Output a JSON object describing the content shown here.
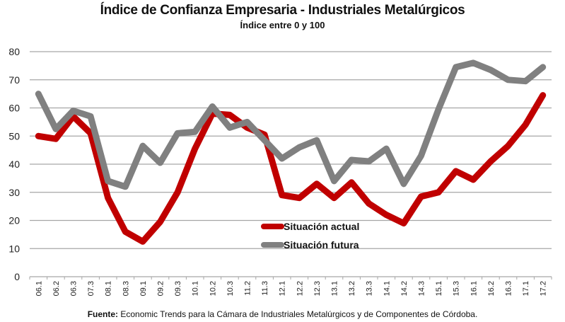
{
  "chart_data": {
    "type": "line",
    "title": "Índice de Confianza Empresaria - Industriales Metalúrgicos",
    "subtitle": "Índice entre 0 y 100",
    "xlabel": "",
    "ylabel": "",
    "ylim": [
      0,
      80
    ],
    "yticks": [
      0,
      10,
      20,
      30,
      40,
      50,
      60,
      70,
      80
    ],
    "grid": true,
    "legend_position": "center-bottom (inside plot)",
    "categories": [
      "06.1",
      "06.2",
      "06.3",
      "07.3",
      "08.1",
      "08.3",
      "09.1",
      "09.2",
      "09.3",
      "10.1",
      "10.2",
      "10.3",
      "11.2",
      "11.3",
      "12.1",
      "12.2",
      "12.3",
      "13.1",
      "13.2",
      "13.3",
      "14.1",
      "14.2",
      "14.3",
      "15.1",
      "15.3",
      "16.1",
      "16.2",
      "16.3",
      "17.1",
      "17.2"
    ],
    "series": [
      {
        "name": "Situación actual",
        "color": "#c00000",
        "values": [
          50,
          49,
          57,
          51,
          28,
          16,
          12.5,
          19.5,
          30,
          45.5,
          58,
          57.5,
          53,
          50.5,
          29,
          28,
          33,
          28,
          33.5,
          26,
          22,
          19,
          28.5,
          30,
          37.5,
          34.5,
          41,
          46.5,
          54,
          64.5
        ]
      },
      {
        "name": "Situación futura",
        "color": "#808080",
        "values": [
          65,
          52.5,
          59,
          57,
          34,
          32,
          46.5,
          40.5,
          51,
          51.5,
          60.5,
          53,
          55,
          48.5,
          42,
          46,
          48.5,
          34,
          41.5,
          41,
          45.5,
          33,
          43,
          59.5,
          74.5,
          76,
          73.5,
          70,
          69.5,
          74.5
        ]
      }
    ]
  },
  "source": {
    "label": "Fuente:",
    "text": " Economic Trends para la Cámara de Industriales Metalúrgicos y de Componentes de Córdoba."
  }
}
